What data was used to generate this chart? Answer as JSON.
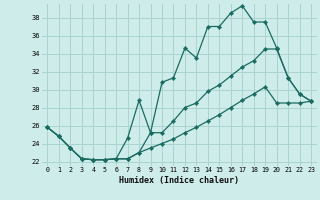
{
  "xlabel": "Humidex (Indice chaleur)",
  "background_color": "#ceecea",
  "grid_color": "#aad4d0",
  "line_color": "#1a6b62",
  "xlim": [
    -0.5,
    23.5
  ],
  "ylim": [
    21.5,
    39.5
  ],
  "xticks": [
    0,
    1,
    2,
    3,
    4,
    5,
    6,
    7,
    8,
    9,
    10,
    11,
    12,
    13,
    14,
    15,
    16,
    17,
    18,
    19,
    20,
    21,
    22,
    23
  ],
  "yticks": [
    22,
    24,
    26,
    28,
    30,
    32,
    34,
    36,
    38
  ],
  "series1_x": [
    0,
    1,
    2,
    3,
    4,
    5,
    6,
    7,
    8,
    9,
    10,
    11,
    12,
    13,
    14,
    15,
    16,
    17,
    18,
    19,
    20,
    21,
    22,
    23
  ],
  "series1_y": [
    25.8,
    24.8,
    23.5,
    22.3,
    22.2,
    22.2,
    22.3,
    24.6,
    28.8,
    25.2,
    30.8,
    31.3,
    34.6,
    33.5,
    37.0,
    37.0,
    38.5,
    39.3,
    37.5,
    37.5,
    34.6,
    31.3,
    29.5,
    28.7
  ],
  "series2_x": [
    0,
    1,
    2,
    3,
    4,
    5,
    6,
    7,
    8,
    9,
    10,
    11,
    12,
    13,
    14,
    15,
    16,
    17,
    18,
    19,
    20,
    21,
    22,
    23
  ],
  "series2_y": [
    25.8,
    24.8,
    23.5,
    22.3,
    22.2,
    22.2,
    22.3,
    22.3,
    23.0,
    25.2,
    25.2,
    26.5,
    28.0,
    28.5,
    29.8,
    30.5,
    31.5,
    32.5,
    33.2,
    34.5,
    34.5,
    31.3,
    29.5,
    28.7
  ],
  "series3_x": [
    0,
    1,
    2,
    3,
    4,
    5,
    6,
    7,
    8,
    9,
    10,
    11,
    12,
    13,
    14,
    15,
    16,
    17,
    18,
    19,
    20,
    21,
    22,
    23
  ],
  "series3_y": [
    25.8,
    24.8,
    23.5,
    22.3,
    22.2,
    22.2,
    22.3,
    22.3,
    23.0,
    23.5,
    24.0,
    24.5,
    25.2,
    25.8,
    26.5,
    27.2,
    28.0,
    28.8,
    29.5,
    30.3,
    28.5,
    28.5,
    28.5,
    28.7
  ]
}
